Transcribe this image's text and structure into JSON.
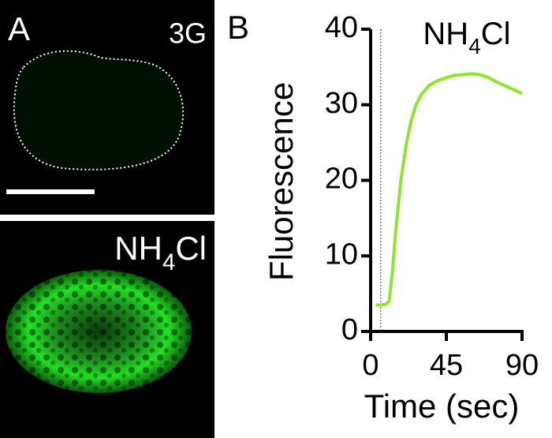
{
  "panel_a": {
    "label": "A",
    "top_label": "3G",
    "bottom_label": "NH4Cl"
  },
  "chart_data": {
    "type": "line",
    "panel_label": "B",
    "annotation": "NH4Cl",
    "xlabel": "Time (sec)",
    "ylabel": "Fluorescence",
    "xlim": [
      0,
      90
    ],
    "ylim": [
      0,
      40
    ],
    "xticks": [
      0,
      45,
      90
    ],
    "yticks": [
      0,
      10,
      20,
      30,
      40
    ],
    "marker_x": 6,
    "series": [
      {
        "color": "#8ee62a",
        "x": [
          3,
          6,
          9,
          11,
          13,
          15,
          18,
          21,
          24,
          27,
          30,
          35,
          40,
          45,
          50,
          55,
          60,
          65,
          70,
          75,
          80,
          85,
          90
        ],
        "values": [
          3.5,
          3.5,
          3.6,
          4,
          8,
          13.5,
          20,
          24.5,
          27.8,
          30,
          31.3,
          32.6,
          33.2,
          33.6,
          33.9,
          34,
          34.1,
          34,
          33.6,
          33,
          32.5,
          32,
          31.5
        ]
      }
    ]
  }
}
